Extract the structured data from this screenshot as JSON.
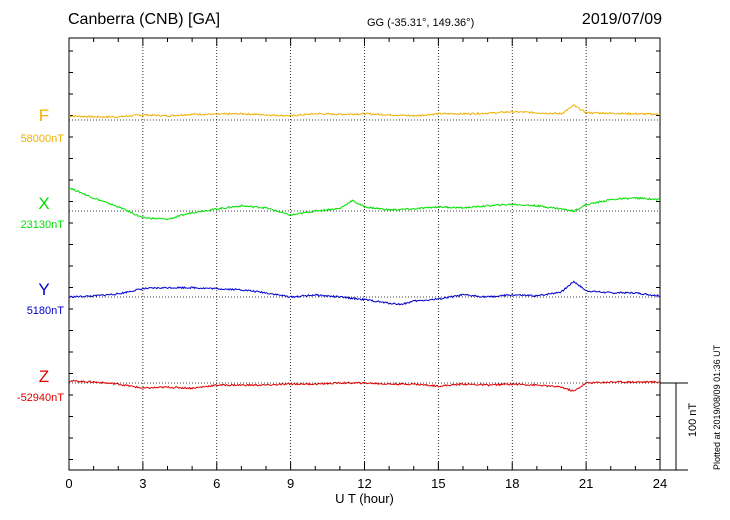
{
  "header": {
    "station": "Canberra (CNB)  [GA]",
    "coords": "GG (-35.31°, 149.36°)",
    "date": "2019/07/09"
  },
  "plotted_note": "Plotted at 2019/08/09 01:36 UT",
  "chart_data": {
    "type": "line",
    "xlabel": "U T (hour)",
    "xlim": [
      0,
      24
    ],
    "xticks": [
      "0",
      "3",
      "6",
      "9",
      "12",
      "15",
      "18",
      "21",
      "24"
    ],
    "grid": true,
    "scale_bar": {
      "label": "100 nT",
      "value_nT": 100
    },
    "series": [
      {
        "name": "F",
        "baseline": "58000nT",
        "color": "#f0b000",
        "x": [
          0,
          1,
          2,
          3,
          4,
          5,
          6,
          7,
          8,
          9,
          10,
          11,
          12,
          13,
          14,
          15,
          16,
          17,
          18,
          19,
          20,
          20.5,
          21,
          22,
          23,
          24
        ],
        "values": [
          8,
          6,
          6,
          10,
          8,
          11,
          11,
          12,
          10,
          8,
          12,
          11,
          12,
          10,
          8,
          12,
          12,
          13,
          16,
          14,
          12,
          28,
          14,
          13,
          12,
          11
        ]
      },
      {
        "name": "X",
        "baseline": "23130nT",
        "color": "#00e000",
        "x": [
          0,
          1,
          2,
          3,
          4,
          5,
          6,
          7,
          8,
          9,
          10,
          11,
          11.5,
          12,
          13,
          14,
          15,
          16,
          17,
          18,
          19,
          20,
          20.5,
          21,
          22,
          23,
          24
        ],
        "values": [
          45,
          25,
          8,
          -13,
          -16,
          -3,
          4,
          10,
          6,
          -8,
          0,
          5,
          20,
          8,
          2,
          4,
          8,
          6,
          10,
          13,
          10,
          4,
          0,
          12,
          22,
          25,
          22
        ]
      },
      {
        "name": "Y",
        "baseline": "5180nT",
        "color": "#0000cc",
        "x": [
          0,
          1,
          2,
          3,
          4,
          5,
          6,
          7,
          8,
          9,
          10,
          11,
          12,
          13,
          13.5,
          14,
          15,
          16,
          17,
          18,
          19,
          20,
          20.5,
          21,
          22,
          23,
          24
        ],
        "values": [
          0,
          2,
          6,
          16,
          18,
          18,
          16,
          14,
          8,
          0,
          4,
          0,
          -5,
          -12,
          -14,
          -8,
          -4,
          4,
          0,
          4,
          2,
          10,
          30,
          12,
          8,
          8,
          2
        ]
      },
      {
        "name": "Z",
        "baseline": "-52940nT",
        "color": "#e00000",
        "x": [
          0,
          1,
          2,
          3,
          4,
          5,
          6,
          7,
          8,
          9,
          10,
          11,
          12,
          13,
          14,
          15,
          16,
          17,
          18,
          19,
          20,
          20.5,
          21,
          22,
          23,
          24
        ],
        "values": [
          4,
          2,
          -2,
          -10,
          -8,
          -10,
          -4,
          -4,
          -4,
          -2,
          -2,
          0,
          0,
          -2,
          -2,
          -6,
          -2,
          -4,
          -2,
          -4,
          -8,
          -16,
          0,
          2,
          2,
          2
        ]
      }
    ]
  }
}
